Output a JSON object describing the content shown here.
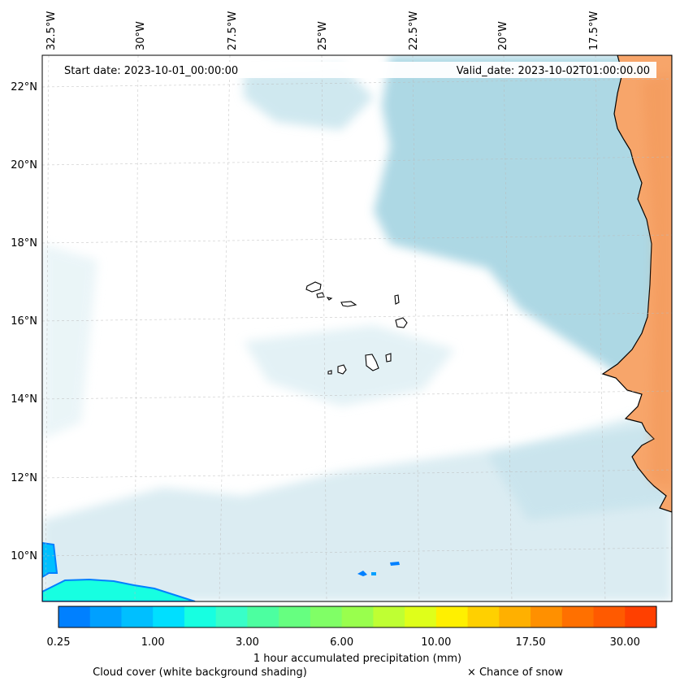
{
  "map": {
    "top_lon_labels": [
      "32.5°W",
      "30°W",
      "27.5°W",
      "25°W",
      "22.5°W",
      "20°W",
      "17.5°W"
    ],
    "left_lat_labels": [
      "22°N",
      "20°N",
      "18°N",
      "16°N",
      "14°N",
      "12°N",
      "10°N"
    ],
    "start_date_text": "Start date: 2023-10-01_00:00:00",
    "valid_date_text": "Valid_date: 2023-10-02T01:00:00.00",
    "gridlines": true,
    "region": "Cabo Verde / West Africa coast",
    "colors": {
      "cloud_shading": "#a9d6e3",
      "land_dry": "#f7a56a",
      "coastline": "#000000"
    }
  },
  "colorbar": {
    "colors": [
      "#0080ff",
      "#00a0ff",
      "#00bfff",
      "#00dfff",
      "#17ffe1",
      "#38ffc8",
      "#4cffa0",
      "#66ff80",
      "#80ff66",
      "#99ff4d",
      "#bfff33",
      "#dfff1a",
      "#fff000",
      "#ffd000",
      "#ffb000",
      "#ff9000",
      "#ff7000",
      "#ff5a00",
      "#ff4000"
    ],
    "tick_labels": [
      "0.25",
      "1.00",
      "3.00",
      "6.00",
      "10.00",
      "17.50",
      "30.00"
    ],
    "title": "1 hour accumulated precipitation (mm)",
    "cloud_note": "Cloud cover (white background shading)",
    "snow_note": "× Chance of snow"
  }
}
